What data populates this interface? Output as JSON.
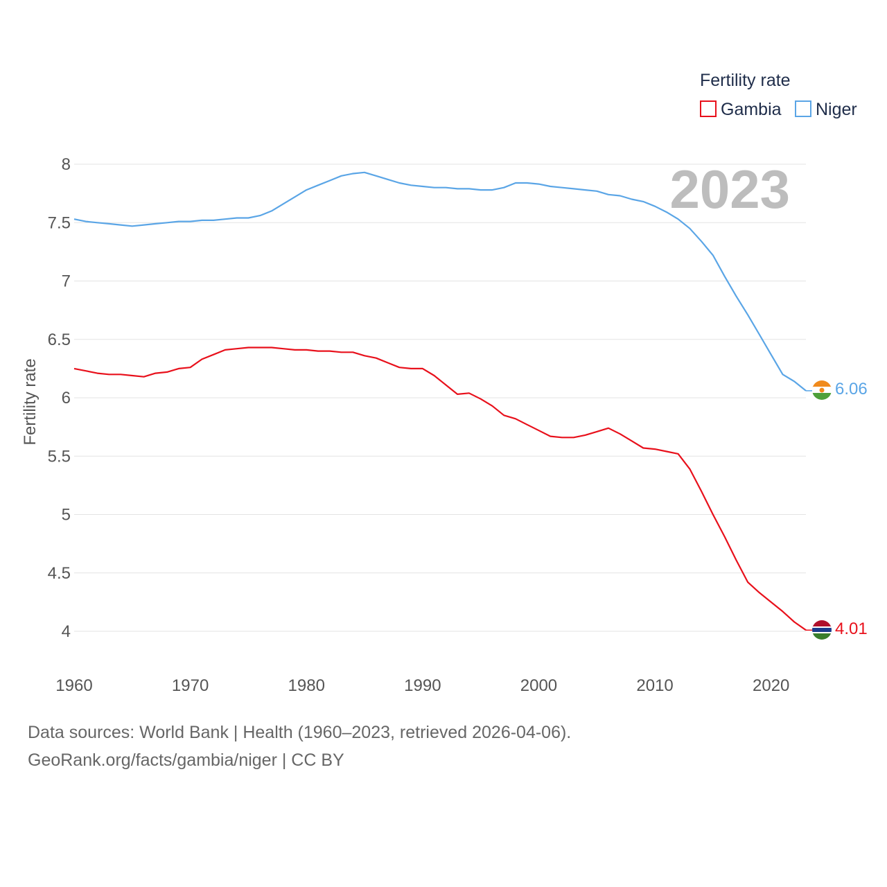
{
  "chart_data": {
    "type": "line",
    "title": "",
    "legend_title": "Fertility rate",
    "legend_position": "top-right",
    "ylabel": "Fertility rate",
    "xlabel": "",
    "year_label": "2023",
    "x_range": [
      1960,
      2023
    ],
    "ylim": [
      4,
      8
    ],
    "x_ticks": [
      "1960",
      "1970",
      "1980",
      "1990",
      "2000",
      "2010",
      "2020"
    ],
    "y_ticks": [
      "8",
      "7.5",
      "7",
      "6.5",
      "6",
      "5.5",
      "5",
      "4.5",
      "4"
    ],
    "grid": true,
    "years": [
      1960,
      1961,
      1962,
      1963,
      1964,
      1965,
      1966,
      1967,
      1968,
      1969,
      1970,
      1971,
      1972,
      1973,
      1974,
      1975,
      1976,
      1977,
      1978,
      1979,
      1980,
      1981,
      1982,
      1983,
      1984,
      1985,
      1986,
      1987,
      1988,
      1989,
      1990,
      1991,
      1992,
      1993,
      1994,
      1995,
      1996,
      1997,
      1998,
      1999,
      2000,
      2001,
      2002,
      2003,
      2004,
      2005,
      2006,
      2007,
      2008,
      2009,
      2010,
      2011,
      2012,
      2013,
      2014,
      2015,
      2016,
      2017,
      2018,
      2019,
      2020,
      2021,
      2022,
      2023
    ],
    "series": [
      {
        "name": "Gambia",
        "color": "#e8101b",
        "end_label": "4.01",
        "flag": "gambia-flag",
        "values": [
          6.25,
          6.23,
          6.21,
          6.2,
          6.2,
          6.19,
          6.18,
          6.21,
          6.22,
          6.25,
          6.26,
          6.33,
          6.37,
          6.41,
          6.42,
          6.43,
          6.43,
          6.43,
          6.42,
          6.41,
          6.41,
          6.4,
          6.4,
          6.39,
          6.39,
          6.36,
          6.34,
          6.3,
          6.26,
          6.25,
          6.25,
          6.19,
          6.11,
          6.03,
          6.04,
          5.99,
          5.93,
          5.85,
          5.82,
          5.77,
          5.72,
          5.67,
          5.66,
          5.66,
          5.68,
          5.71,
          5.74,
          5.69,
          5.63,
          5.57,
          5.56,
          5.54,
          5.52,
          5.39,
          5.2,
          5.0,
          4.81,
          4.61,
          4.42,
          4.33,
          4.25,
          4.17,
          4.08,
          4.01
        ]
      },
      {
        "name": "Niger",
        "color": "#5aa5e6",
        "end_label": "6.06",
        "flag": "niger-flag",
        "values": [
          7.53,
          7.51,
          7.5,
          7.49,
          7.48,
          7.47,
          7.48,
          7.49,
          7.5,
          7.51,
          7.51,
          7.52,
          7.52,
          7.53,
          7.54,
          7.54,
          7.56,
          7.6,
          7.66,
          7.72,
          7.78,
          7.82,
          7.86,
          7.9,
          7.92,
          7.93,
          7.9,
          7.87,
          7.84,
          7.82,
          7.81,
          7.8,
          7.8,
          7.79,
          7.79,
          7.78,
          7.78,
          7.8,
          7.84,
          7.84,
          7.83,
          7.81,
          7.8,
          7.79,
          7.78,
          7.77,
          7.74,
          7.73,
          7.7,
          7.68,
          7.64,
          7.59,
          7.53,
          7.45,
          7.34,
          7.22,
          7.04,
          6.87,
          6.71,
          6.54,
          6.37,
          6.2,
          6.14,
          6.06
        ]
      }
    ]
  },
  "footer": {
    "line1": "Data sources: World Bank | Health (1960–2023, retrieved 2026-04-06).",
    "line2": "GeoRank.org/facts/gambia/niger | CC BY"
  }
}
